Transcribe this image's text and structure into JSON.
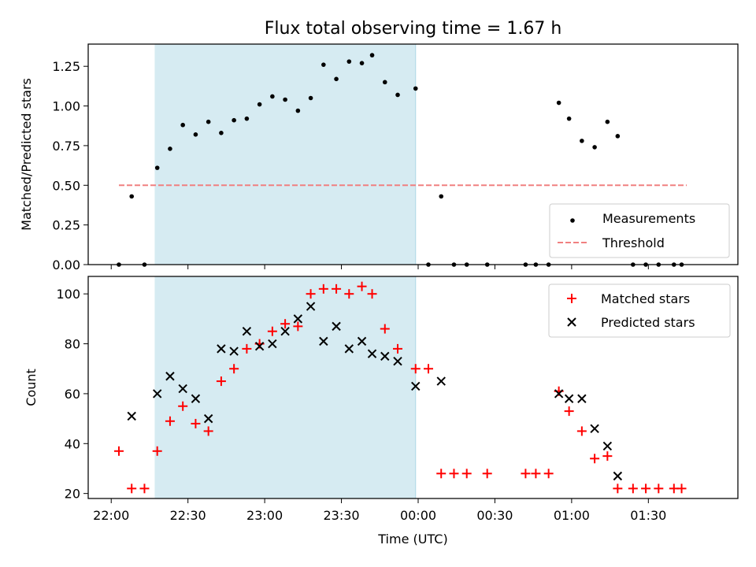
{
  "chart_data": [
    {
      "type": "scatter",
      "title": "Flux total observing time = 1.67 h",
      "ylabel": "Matched/Predicted stars",
      "xlim": [
        "21:51",
        "02:05"
      ],
      "ylim": [
        0,
        1.39
      ],
      "yticks": [
        "0.00",
        "0.25",
        "0.50",
        "0.75",
        "1.00",
        "1.25"
      ],
      "shaded_region": {
        "from": "22:17",
        "to": "23:59",
        "color": "#add8e6"
      },
      "threshold": {
        "y": 0.5,
        "from": "22:03",
        "to": "01:45",
        "color": "#f08080",
        "style": "dashed"
      },
      "legend": {
        "position": "lower right",
        "entries": [
          "Measurements",
          "Threshold"
        ]
      },
      "series": [
        {
          "name": "Measurements",
          "marker": "dot",
          "color": "#000000",
          "points": [
            [
              "22:03",
              0.0
            ],
            [
              "22:08",
              0.43
            ],
            [
              "22:13",
              0.0
            ],
            [
              "22:18",
              0.61
            ],
            [
              "22:23",
              0.73
            ],
            [
              "22:28",
              0.88
            ],
            [
              "22:33",
              0.82
            ],
            [
              "22:38",
              0.9
            ],
            [
              "22:43",
              0.83
            ],
            [
              "22:48",
              0.91
            ],
            [
              "22:53",
              0.92
            ],
            [
              "22:58",
              1.01
            ],
            [
              "23:03",
              1.06
            ],
            [
              "23:08",
              1.04
            ],
            [
              "23:13",
              0.97
            ],
            [
              "23:18",
              1.05
            ],
            [
              "23:23",
              1.26
            ],
            [
              "23:28",
              1.17
            ],
            [
              "23:33",
              1.28
            ],
            [
              "23:38",
              1.27
            ],
            [
              "23:42",
              1.32
            ],
            [
              "23:47",
              1.15
            ],
            [
              "23:52",
              1.07
            ],
            [
              "23:59",
              1.11
            ],
            [
              "00:04",
              0.0
            ],
            [
              "00:09",
              0.43
            ],
            [
              "00:14",
              0.0
            ],
            [
              "00:19",
              0.0
            ],
            [
              "00:27",
              0.0
            ],
            [
              "00:42",
              0.0
            ],
            [
              "00:46",
              0.0
            ],
            [
              "00:51",
              0.0
            ],
            [
              "00:55",
              1.02
            ],
            [
              "00:59",
              0.92
            ],
            [
              "01:04",
              0.78
            ],
            [
              "01:09",
              0.74
            ],
            [
              "01:14",
              0.9
            ],
            [
              "01:18",
              0.81
            ],
            [
              "01:24",
              0.0
            ],
            [
              "01:29",
              0.0
            ],
            [
              "01:34",
              0.0
            ],
            [
              "01:40",
              0.0
            ],
            [
              "01:43",
              0.0
            ]
          ]
        }
      ]
    },
    {
      "type": "scatter",
      "xlabel": "Time (UTC)",
      "ylabel": "Count",
      "xlim": [
        "21:51",
        "02:05"
      ],
      "ylim": [
        18,
        107
      ],
      "yticks": [
        "20",
        "40",
        "60",
        "80",
        "100"
      ],
      "xticks": [
        "22:00",
        "22:30",
        "23:00",
        "23:30",
        "00:00",
        "00:30",
        "01:00",
        "01:30"
      ],
      "shaded_region": {
        "from": "22:17",
        "to": "23:59",
        "color": "#add8e6"
      },
      "legend": {
        "position": "upper right",
        "entries": [
          "Matched stars",
          "Predicted stars"
        ]
      },
      "series": [
        {
          "name": "Matched stars",
          "marker": "plus",
          "color": "#ff0000",
          "points": [
            [
              "22:03",
              37
            ],
            [
              "22:08",
              22
            ],
            [
              "22:13",
              22
            ],
            [
              "22:18",
              37
            ],
            [
              "22:23",
              49
            ],
            [
              "22:28",
              55
            ],
            [
              "22:33",
              48
            ],
            [
              "22:38",
              45
            ],
            [
              "22:43",
              65
            ],
            [
              "22:48",
              70
            ],
            [
              "22:53",
              78
            ],
            [
              "22:58",
              80
            ],
            [
              "23:03",
              85
            ],
            [
              "23:08",
              88
            ],
            [
              "23:13",
              87
            ],
            [
              "23:18",
              100
            ],
            [
              "23:23",
              102
            ],
            [
              "23:28",
              102
            ],
            [
              "23:33",
              100
            ],
            [
              "23:38",
              103
            ],
            [
              "23:42",
              100
            ],
            [
              "23:47",
              86
            ],
            [
              "23:52",
              78
            ],
            [
              "23:59",
              70
            ],
            [
              "00:04",
              70
            ],
            [
              "00:09",
              28
            ],
            [
              "00:14",
              28
            ],
            [
              "00:19",
              28
            ],
            [
              "00:27",
              28
            ],
            [
              "00:42",
              28
            ],
            [
              "00:46",
              28
            ],
            [
              "00:51",
              28
            ],
            [
              "00:55",
              61
            ],
            [
              "00:59",
              53
            ],
            [
              "01:04",
              45
            ],
            [
              "01:09",
              34
            ],
            [
              "01:14",
              35
            ],
            [
              "01:18",
              22
            ],
            [
              "01:24",
              22
            ],
            [
              "01:29",
              22
            ],
            [
              "01:34",
              22
            ],
            [
              "01:40",
              22
            ],
            [
              "01:43",
              22
            ]
          ]
        },
        {
          "name": "Predicted stars",
          "marker": "x",
          "color": "#000000",
          "points": [
            [
              "22:08",
              51
            ],
            [
              "22:18",
              60
            ],
            [
              "22:23",
              67
            ],
            [
              "22:28",
              62
            ],
            [
              "22:33",
              58
            ],
            [
              "22:38",
              50
            ],
            [
              "22:43",
              78
            ],
            [
              "22:48",
              77
            ],
            [
              "22:53",
              85
            ],
            [
              "22:58",
              79
            ],
            [
              "23:03",
              80
            ],
            [
              "23:08",
              85
            ],
            [
              "23:13",
              90
            ],
            [
              "23:18",
              95
            ],
            [
              "23:23",
              81
            ],
            [
              "23:28",
              87
            ],
            [
              "23:33",
              78
            ],
            [
              "23:38",
              81
            ],
            [
              "23:42",
              76
            ],
            [
              "23:47",
              75
            ],
            [
              "23:52",
              73
            ],
            [
              "23:59",
              63
            ],
            [
              "00:09",
              65
            ],
            [
              "00:55",
              60
            ],
            [
              "00:59",
              58
            ],
            [
              "01:04",
              58
            ],
            [
              "01:09",
              46
            ],
            [
              "01:14",
              39
            ],
            [
              "01:18",
              27
            ]
          ]
        }
      ]
    }
  ]
}
